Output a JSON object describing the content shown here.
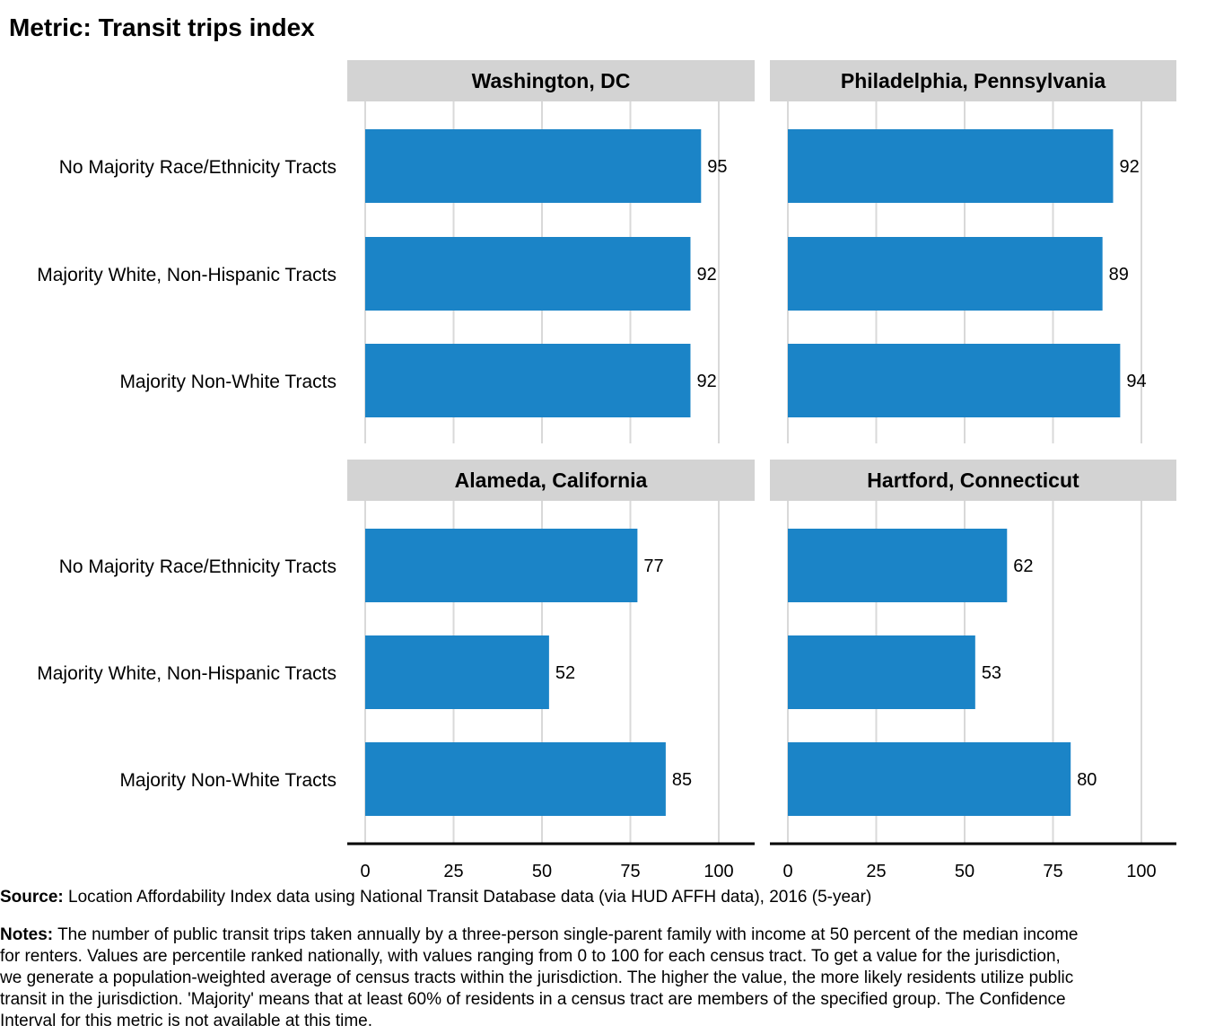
{
  "title": "Metric: Transit trips index",
  "source_label": "Source:",
  "source_text": "Location Affordability Index data using National Transit Database data (via HUD AFFH data), 2016 (5-year)",
  "notes_label": "Notes:",
  "notes_text": "The number of public transit trips taken annually by a three-person single-parent family with income at 50 percent of the median income for renters. Values are percentile ranked nationally, with values ranging from 0 to 100 for each census tract. To get a value for the jurisdiction, we generate a population-weighted average of census tracts within the jurisdiction. The higher the value, the more likely residents utilize public transit in the jurisdiction. 'Majority' means that at least 60% of residents in a census tract are members of the specified group. The Confidence Interval for this metric is not available at this time.",
  "colors": {
    "bar": "#1b84c7",
    "strip": "#d3d3d3",
    "grid": "#d9d9d9",
    "axis_line": "#000000"
  },
  "chart_data": [
    {
      "type": "bar",
      "orientation": "horizontal",
      "panel": "Washington, DC",
      "categories": [
        "No Majority Race/Ethnicity Tracts",
        "Majority White, Non-Hispanic Tracts",
        "Majority Non-White Tracts"
      ],
      "values": [
        95,
        92,
        92
      ],
      "xlim": [
        0,
        100
      ],
      "xticks": [
        0,
        25,
        50,
        75,
        100
      ]
    },
    {
      "type": "bar",
      "orientation": "horizontal",
      "panel": "Philadelphia, Pennsylvania",
      "categories": [
        "No Majority Race/Ethnicity Tracts",
        "Majority White, Non-Hispanic Tracts",
        "Majority Non-White Tracts"
      ],
      "values": [
        92,
        89,
        94
      ],
      "xlim": [
        0,
        100
      ],
      "xticks": [
        0,
        25,
        50,
        75,
        100
      ]
    },
    {
      "type": "bar",
      "orientation": "horizontal",
      "panel": "Alameda, California",
      "categories": [
        "No Majority Race/Ethnicity Tracts",
        "Majority White, Non-Hispanic Tracts",
        "Majority Non-White Tracts"
      ],
      "values": [
        77,
        52,
        85
      ],
      "xlim": [
        0,
        100
      ],
      "xticks": [
        0,
        25,
        50,
        75,
        100
      ]
    },
    {
      "type": "bar",
      "orientation": "horizontal",
      "panel": "Hartford, Connecticut",
      "categories": [
        "No Majority Race/Ethnicity Tracts",
        "Majority White, Non-Hispanic Tracts",
        "Majority Non-White Tracts"
      ],
      "values": [
        62,
        53,
        80
      ],
      "xlim": [
        0,
        100
      ],
      "xticks": [
        0,
        25,
        50,
        75,
        100
      ]
    }
  ]
}
